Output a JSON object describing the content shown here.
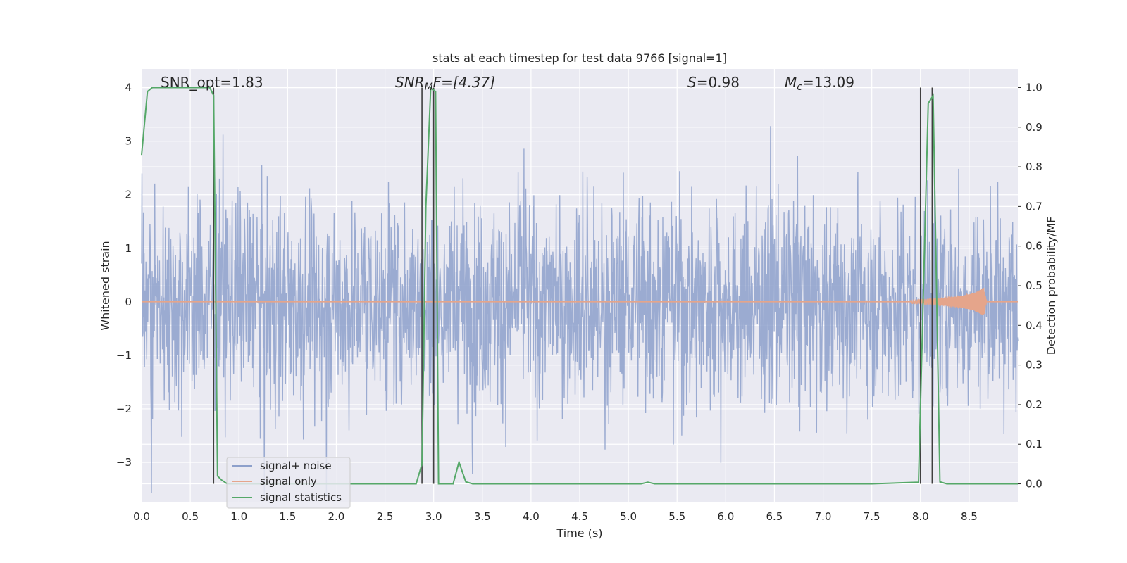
{
  "chart_data": {
    "type": "line",
    "title": "stats at each timestep for test data 9766 [signal=1]",
    "xlabel": "Time (s)",
    "ylabel_left": "Whitened strain",
    "ylabel_right": "Detection probability/MF",
    "xlim": [
      0.0,
      9.0
    ],
    "ylim_left": [
      -3.75,
      4.35
    ],
    "ylim_right": [
      -0.047,
      1.047
    ],
    "xticks": [
      "0.0",
      "0.5",
      "1.0",
      "1.5",
      "2.0",
      "2.5",
      "3.0",
      "3.5",
      "4.0",
      "4.5",
      "5.0",
      "5.5",
      "6.0",
      "6.5",
      "7.0",
      "7.5",
      "8.0",
      "8.5"
    ],
    "yticks_left": [
      "4",
      "3",
      "2",
      "1",
      "0",
      "−1",
      "−2",
      "−3"
    ],
    "yticks_right": [
      "1.0",
      "0.9",
      "0.8",
      "0.7",
      "0.6",
      "0.5",
      "0.4",
      "0.3",
      "0.2",
      "0.1",
      "0.0"
    ],
    "grid": true,
    "legend_position": "lower-left",
    "annotations": {
      "snr_opt": "SNR_opt=1.83",
      "snr_mf_sym": "SNR",
      "snr_mf_sub": "M",
      "snr_mf_rest": "F=[4.37]",
      "s_sym": "S",
      "s_rest": "=0.98",
      "mc_sym": "M",
      "mc_sub": "c",
      "mc_rest": "=13.09"
    },
    "series": [
      {
        "name": "signal+ noise",
        "color": "#8da0cb",
        "description_range": "noise with |amplitude| up to about 4 over 0–9 s"
      },
      {
        "name": "signal only",
        "color": "#e5a58b",
        "chirp": {
          "t": [
            7.9,
            8.0,
            8.2,
            8.4,
            8.55,
            8.65,
            8.68
          ],
          "amp": [
            0.03,
            0.04,
            0.06,
            0.1,
            0.16,
            0.26,
            0.0
          ]
        }
      },
      {
        "name": "signal statistics",
        "color": "#55a868",
        "t": [
          0.0,
          0.06,
          0.11,
          0.19,
          0.28,
          0.38,
          0.49,
          0.59,
          0.7,
          0.74,
          0.78,
          0.82,
          0.88,
          0.95,
          1.05,
          1.2,
          1.5,
          2.0,
          2.5,
          2.82,
          2.88,
          2.92,
          2.97,
          3.02,
          3.05,
          3.1,
          3.2,
          3.26,
          3.33,
          3.4,
          3.6,
          4.0,
          4.5,
          5.0,
          5.13,
          5.2,
          5.27,
          5.4,
          6.0,
          7.0,
          7.5,
          7.98,
          8.08,
          8.13,
          8.2,
          8.27,
          8.4,
          9.0
        ],
        "p": [
          0.83,
          0.99,
          1.0,
          1.0,
          1.0,
          1.0,
          1.0,
          1.0,
          1.0,
          0.98,
          0.02,
          0.01,
          0.0,
          0.0,
          0.0,
          0.0,
          0.0,
          0.0,
          0.0,
          0.0,
          0.05,
          0.7,
          1.0,
          0.99,
          0.0,
          0.0,
          0.0,
          0.055,
          0.005,
          0.0,
          0.0,
          0.0,
          0.0,
          0.0,
          0.0,
          0.004,
          0.0,
          0.0,
          0.0,
          0.0,
          0.0,
          0.004,
          0.96,
          0.98,
          0.005,
          0.0,
          0.0,
          0.0
        ]
      }
    ],
    "vertical_markers": [
      0.74,
      2.88,
      3.0,
      8.0,
      8.12
    ]
  },
  "colors": {
    "axes_bg": "#eaeaf2",
    "grid": "#ffffff",
    "noise": "#8da0cb",
    "signal": "#e5a58b",
    "stats": "#55a868",
    "marker": "#404040"
  }
}
